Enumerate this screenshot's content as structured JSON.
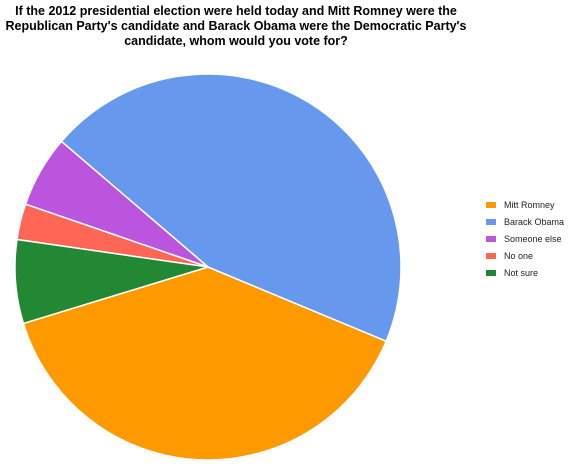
{
  "chart_data": {
    "type": "pie",
    "title_lines": [
      "If the 2012 presidential election were held today and Mitt Romney were the",
      "Republican Party's candidate and Barack Obama were the Democratic Party's",
      "candidate, whom would you vote for?"
    ],
    "legend_position": "right",
    "slices": [
      {
        "label": "Mitt Romney",
        "value": 39,
        "color": "#ff9900"
      },
      {
        "label": "Barack Obama",
        "value": 45,
        "color": "#6699ee"
      },
      {
        "label": "Someone else",
        "value": 6,
        "color": "#bb55dd"
      },
      {
        "label": "No one",
        "value": 3,
        "color": "#ff6655"
      },
      {
        "label": "Not sure",
        "value": 7,
        "color": "#228833"
      }
    ]
  }
}
